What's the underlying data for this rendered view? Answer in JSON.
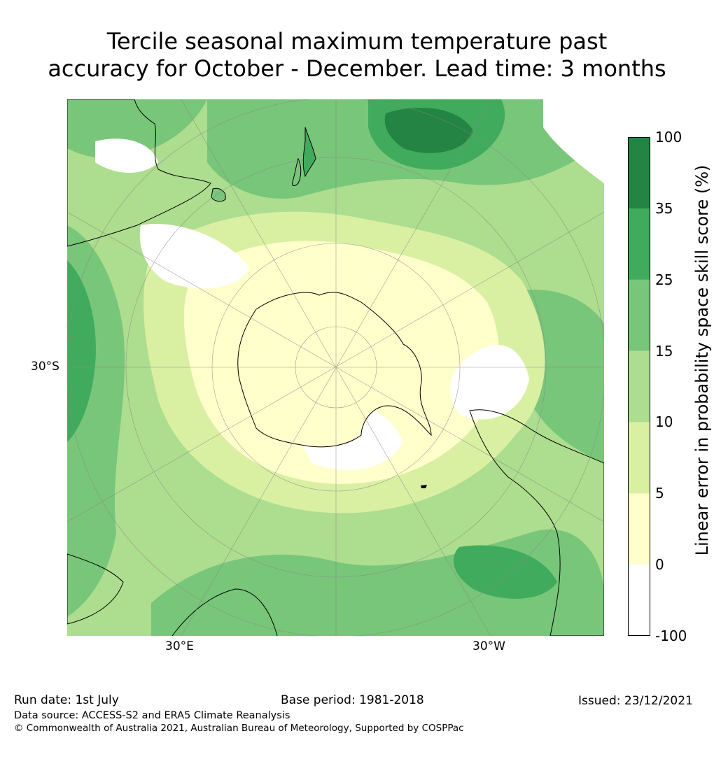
{
  "title": {
    "line1": "Tercile seasonal maximum temperature past",
    "line2": "accuracy for October - December. Lead time: 3 months"
  },
  "map": {
    "projection": "South polar stereographic",
    "labels": {
      "lat_30s": "30°S",
      "lon_30e": "30°E",
      "lon_30w": "30°W"
    }
  },
  "colorbar": {
    "label": "Linear error in probability space skill score (%)",
    "ticks": [
      "100",
      "35",
      "25",
      "15",
      "10",
      "5",
      "0",
      "-100"
    ],
    "bins": [
      {
        "range": "35 to 100",
        "color": "#238443"
      },
      {
        "range": "25 to 35",
        "color": "#41ab5d"
      },
      {
        "range": "15 to 25",
        "color": "#78c679"
      },
      {
        "range": "10 to 15",
        "color": "#addd8e"
      },
      {
        "range": "5 to 10",
        "color": "#d9f0a3"
      },
      {
        "range": "0 to 5",
        "color": "#ffffcc"
      },
      {
        "range": "-100 to 0",
        "color": "#ffffff"
      }
    ]
  },
  "footer": {
    "run_date": "Run date: 1st July",
    "base_period": "Base period: 1981-2018",
    "issued": "Issued: 23/12/2021",
    "data_source": "Data source: ACCESS-S2 and ERA5 Climate Reanalysis",
    "copyright": "© Commonwealth of Australia 2021, Australian Bureau of Meteorology, Supported by COSPPac"
  }
}
